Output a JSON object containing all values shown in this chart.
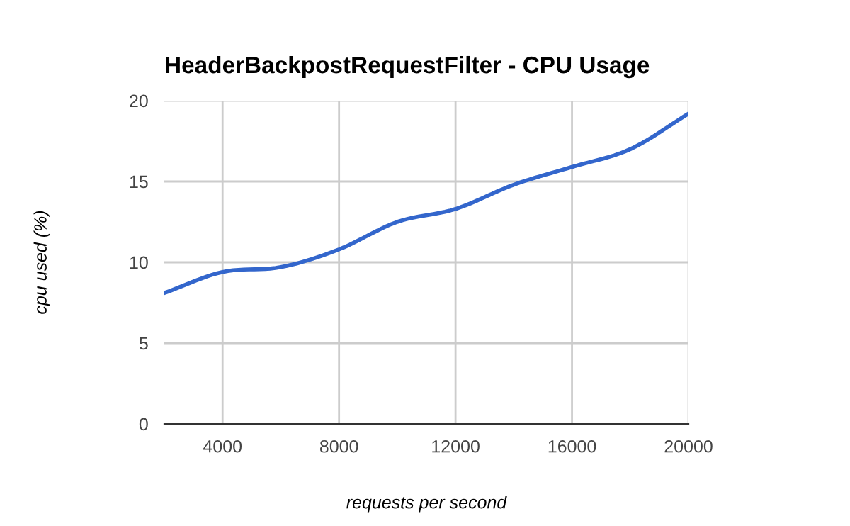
{
  "chart_data": {
    "type": "line",
    "title": "HeaderBackpostRequestFilter - CPU Usage",
    "xlabel": "requests per second",
    "ylabel": "cpu used (%)",
    "x": [
      2000,
      4000,
      6000,
      8000,
      10000,
      12000,
      14000,
      16000,
      18000,
      20000
    ],
    "series": [
      {
        "color": "#3366cc",
        "values": [
          8.1,
          9.4,
          9.7,
          10.8,
          12.5,
          13.3,
          14.8,
          15.9,
          17.0,
          19.2
        ]
      }
    ],
    "xlim": [
      2000,
      20000
    ],
    "xticks": [
      4000,
      8000,
      12000,
      16000,
      20000
    ],
    "ylim": [
      0,
      20
    ],
    "yticks": [
      0,
      5,
      10,
      15,
      20
    ],
    "grid": true,
    "legend": false,
    "marker": "none",
    "line_style": "solid"
  }
}
